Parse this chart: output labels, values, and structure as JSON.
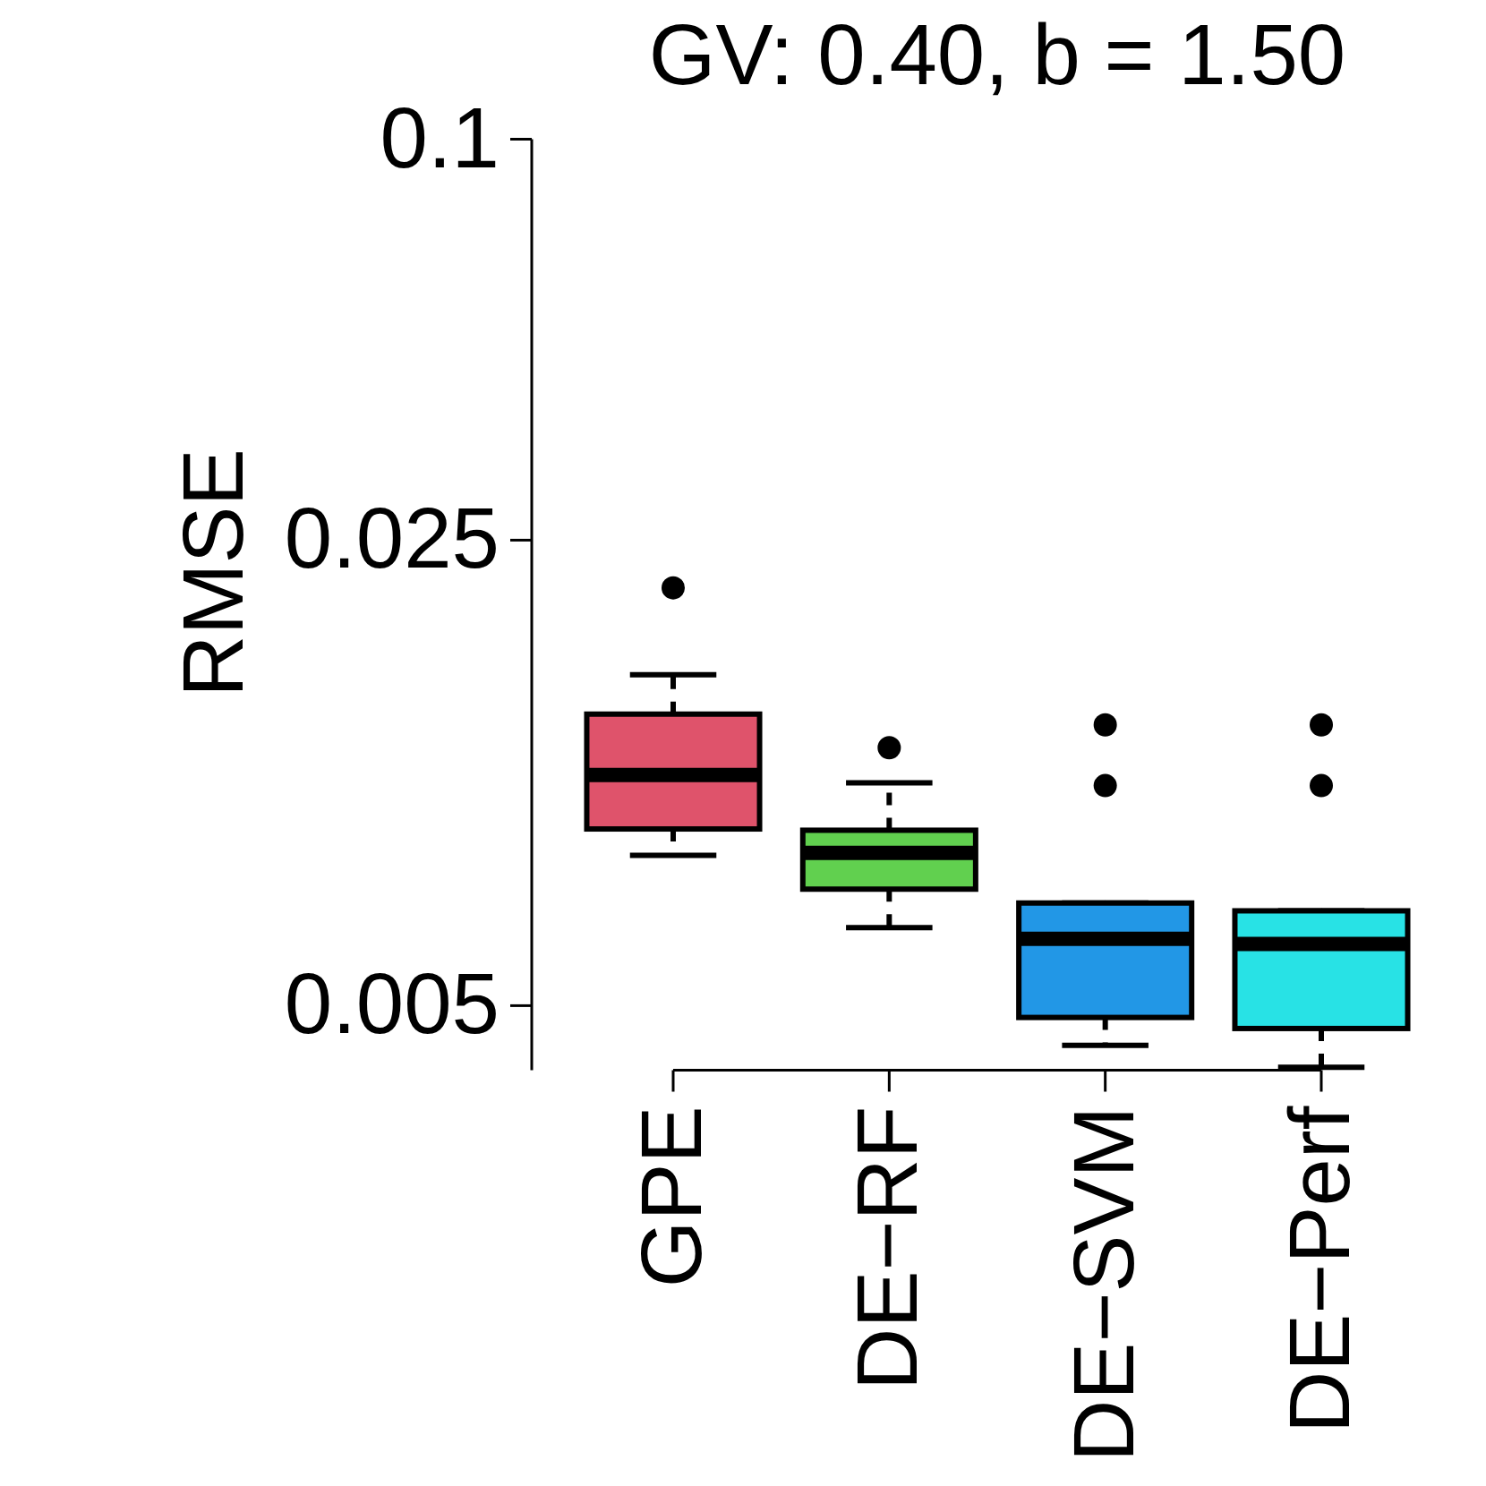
{
  "chart_data": {
    "type": "box",
    "title": "GV: 0.40, b = 1.50",
    "ylabel": "RMSE",
    "categories": [
      "GPE",
      "DE−RF",
      "DE−SVM",
      "DE−Perf"
    ],
    "colors": [
      "#df536b",
      "#61d04f",
      "#2297e6",
      "#28e2e5"
    ],
    "boxes": [
      {
        "low": 0.00841,
        "q1": 0.00921,
        "median": 0.0111,
        "q3": 0.0137,
        "high": 0.0157,
        "outliers": [
          0.0212
        ]
      },
      {
        "low": 0.00655,
        "q1": 0.00748,
        "median": 0.00848,
        "q3": 0.00917,
        "high": 0.0108,
        "outliers": [
          0.0122
        ]
      },
      {
        "low": 0.00436,
        "q1": 0.0048,
        "median": 0.0063,
        "q3": 0.00713,
        "high": 0.00713,
        "outliers": [
          0.0132,
          0.0107
        ]
      },
      {
        "low": 0.00404,
        "q1": 0.00462,
        "median": 0.00619,
        "q3": 0.00694,
        "high": 0.00694,
        "outliers": [
          0.0132,
          0.0107
        ]
      }
    ],
    "log": "y",
    "ylim": [
      0.004,
      0.1
    ],
    "yticks": [
      0.005,
      0.025,
      0.1
    ]
  }
}
